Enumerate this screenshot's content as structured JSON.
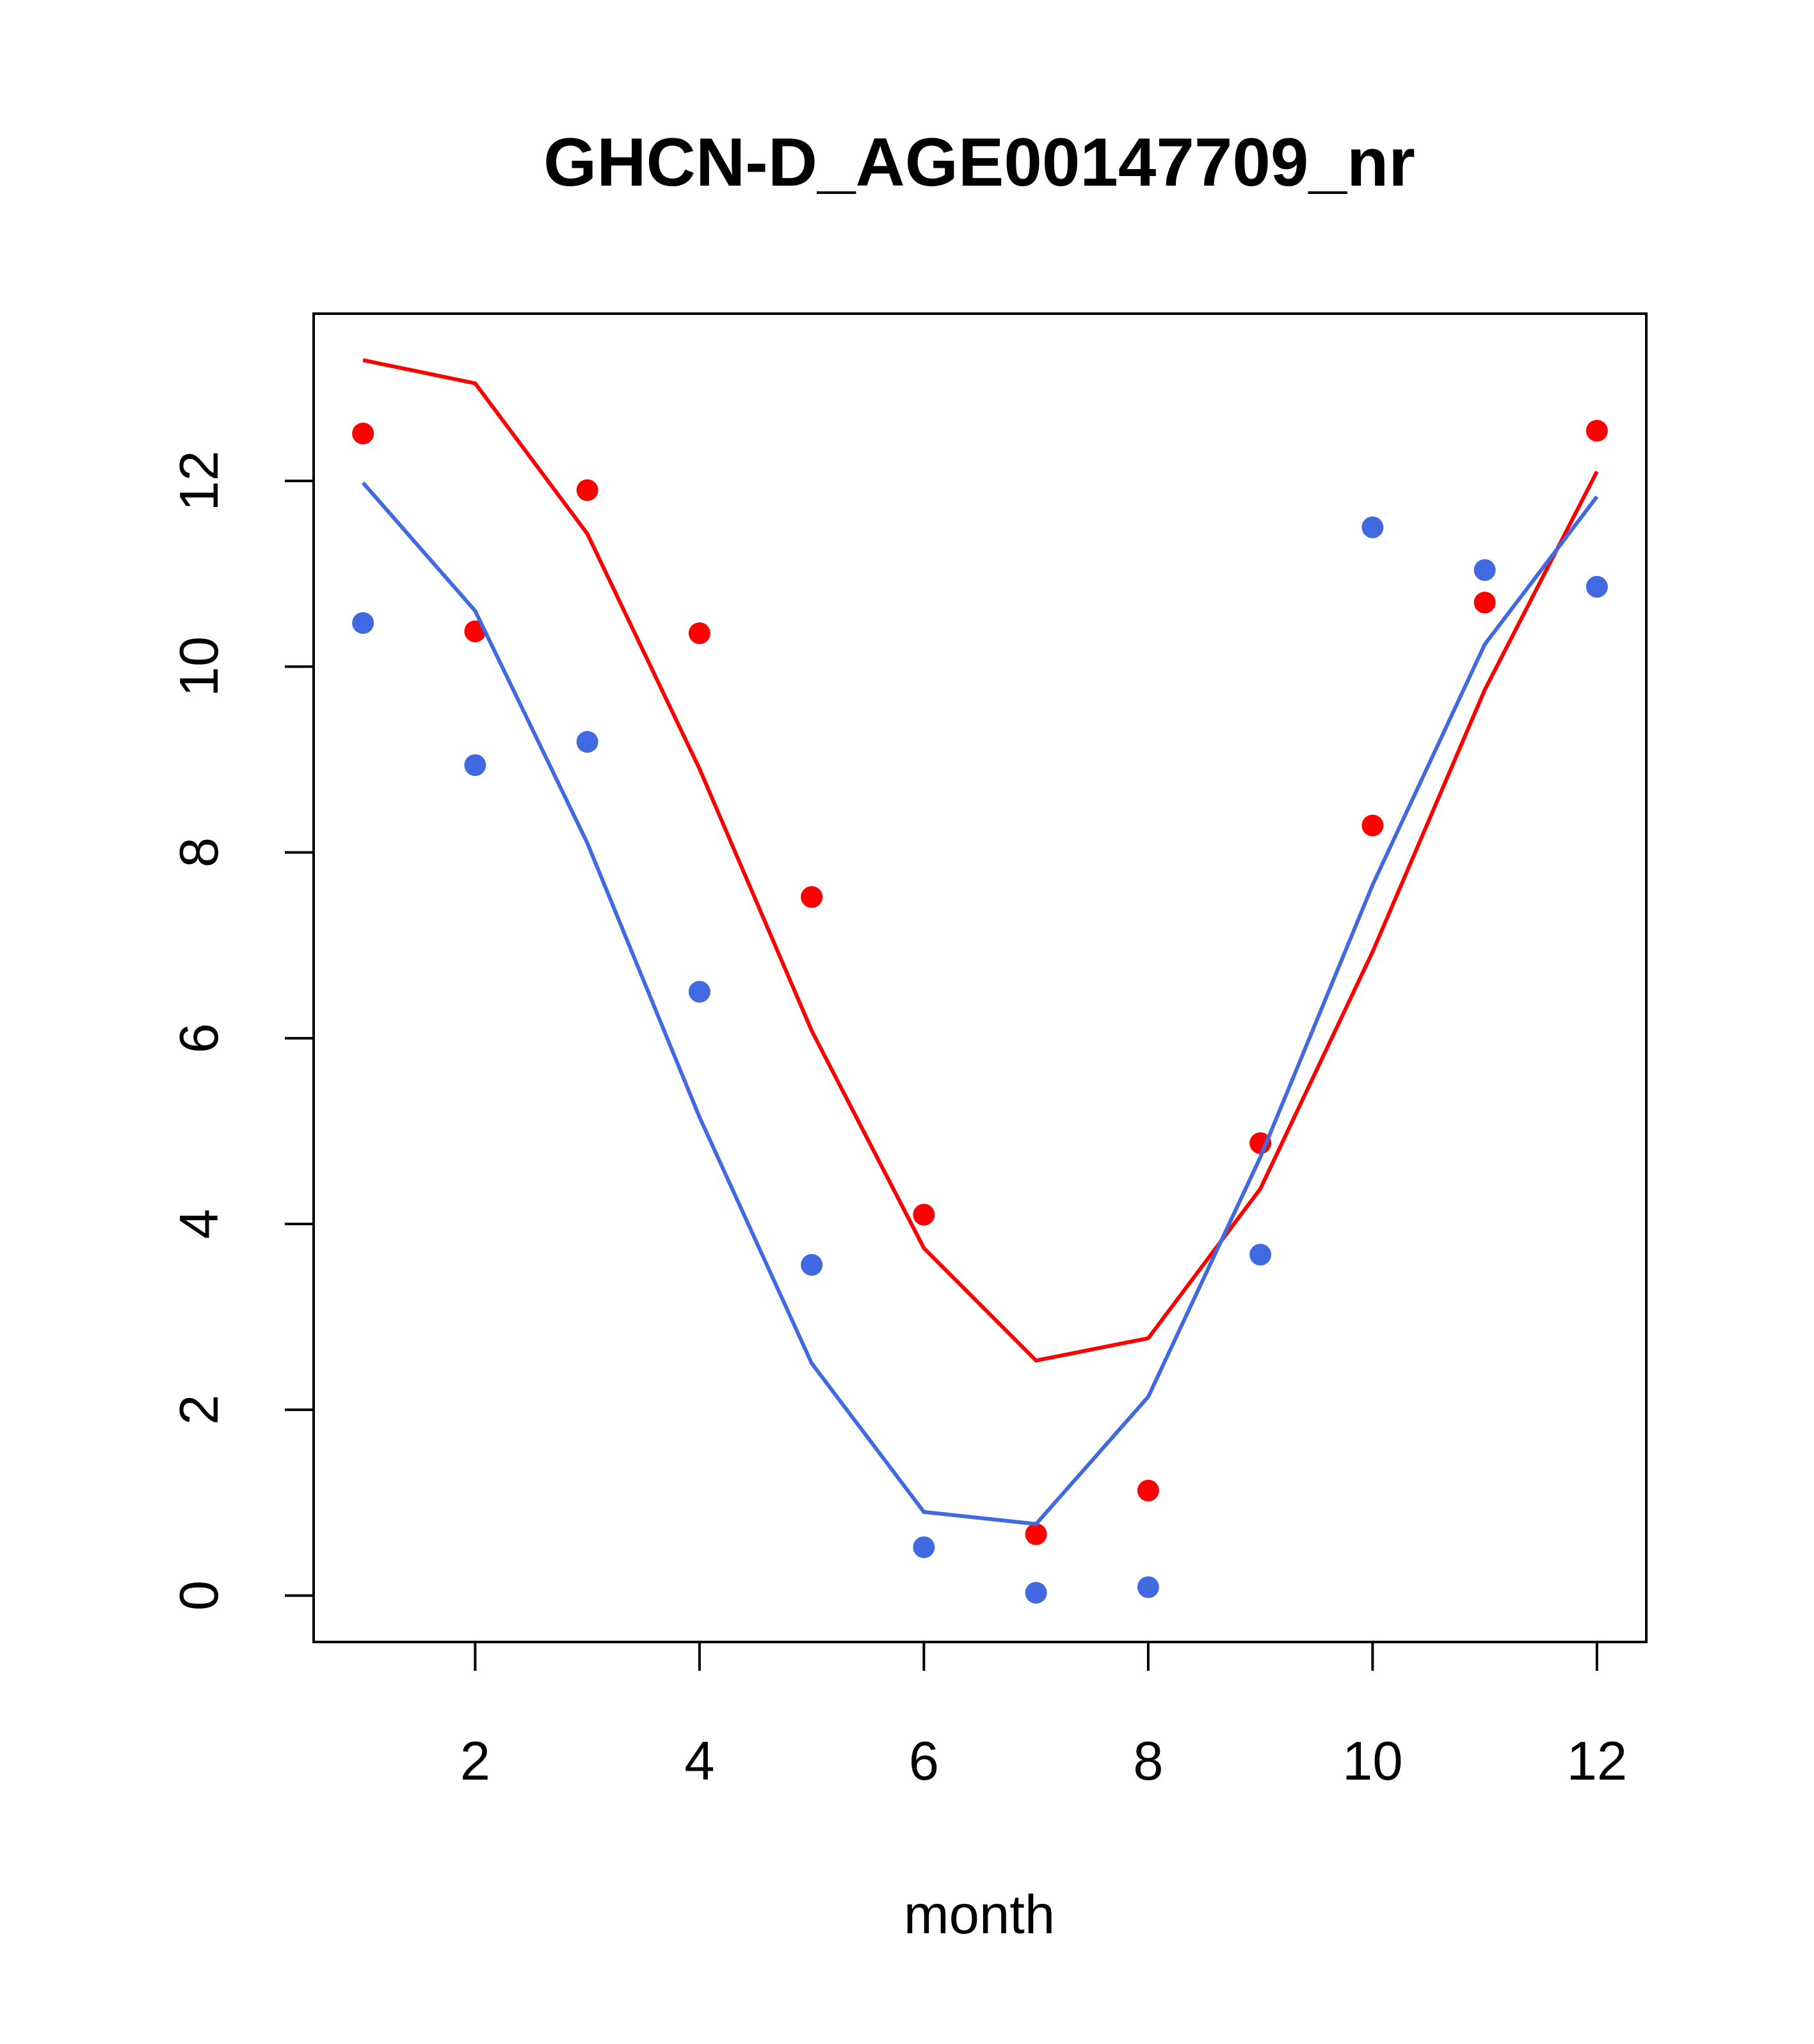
{
  "chart_data": {
    "type": "scatter",
    "title": "GHCN-D_AGE00147709_nr",
    "xlabel": "month",
    "ylabel": "",
    "xlim": [
      0.56,
      12.44
    ],
    "ylim": [
      -0.5,
      13.8
    ],
    "x_ticks": [
      2,
      4,
      6,
      8,
      10,
      12
    ],
    "y_ticks": [
      0,
      2,
      4,
      6,
      8,
      10,
      12
    ],
    "grid": false,
    "legend": "none",
    "x": [
      1,
      2,
      3,
      4,
      5,
      6,
      7,
      8,
      9,
      10,
      11,
      12
    ],
    "series": [
      {
        "color": "#ff0000",
        "points": [
          12.51,
          10.38,
          11.9,
          10.36,
          7.52,
          4.1,
          0.66,
          1.13,
          4.87,
          8.29,
          10.69,
          12.54
        ],
        "line": [
          13.3,
          13.05,
          11.43,
          8.9,
          6.08,
          3.74,
          2.53,
          2.77,
          4.38,
          6.93,
          9.75,
          12.1
        ]
      },
      {
        "color": "#4169e1",
        "points": [
          10.47,
          8.94,
          9.19,
          6.5,
          3.56,
          0.52,
          0.03,
          0.09,
          3.67,
          11.5,
          11.04,
          10.86
        ],
        "line": [
          11.98,
          10.6,
          8.1,
          5.15,
          2.5,
          0.9,
          0.77,
          2.14,
          4.72,
          7.65,
          10.24,
          11.83
        ]
      }
    ]
  }
}
